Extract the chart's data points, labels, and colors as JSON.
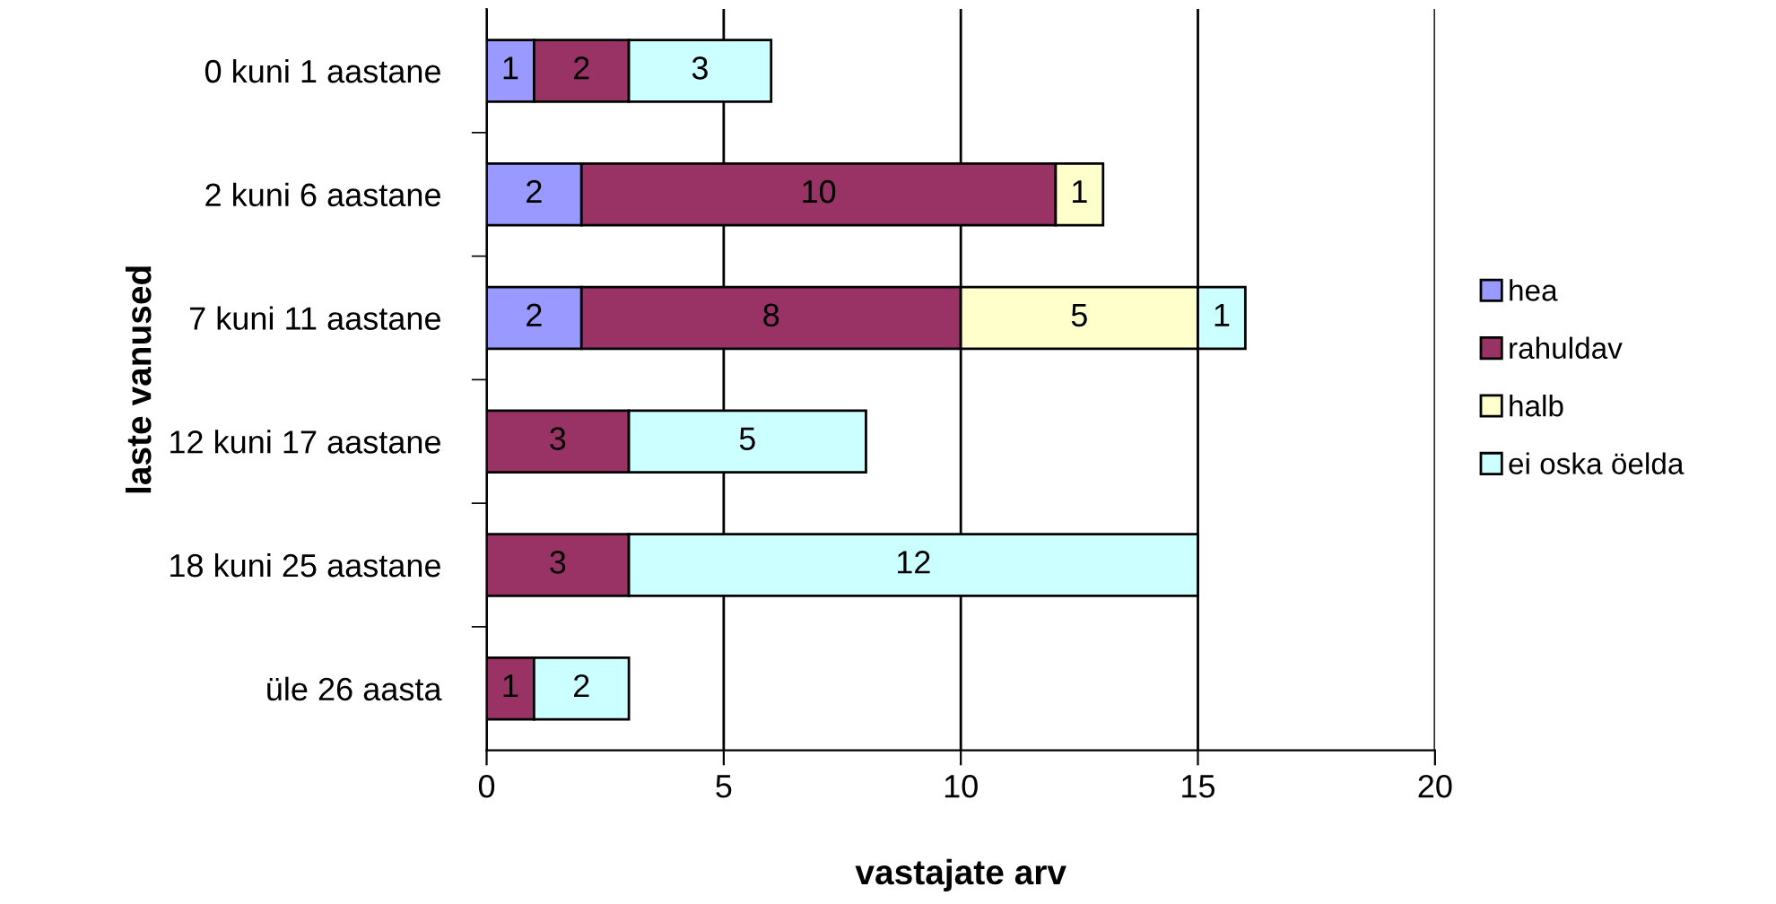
{
  "chart_data": {
    "type": "bar",
    "orientation": "horizontal",
    "stacked": true,
    "xlabel": "vastajate arv",
    "ylabel": "laste vanused",
    "categories": [
      "0 kuni 1 aastane",
      "2 kuni 6 aastane",
      "7 kuni 11 aastane",
      "12 kuni 17 aastane",
      "18 kuni 25 aastane",
      "üle 26 aasta"
    ],
    "series": [
      {
        "name": "hea",
        "color": "#9999ff",
        "values": [
          1,
          2,
          2,
          null,
          null,
          null
        ]
      },
      {
        "name": "rahuldav",
        "color": "#993366",
        "values": [
          2,
          10,
          8,
          3,
          3,
          1
        ]
      },
      {
        "name": "halb",
        "color": "#ffffcc",
        "values": [
          null,
          1,
          5,
          null,
          null,
          null
        ]
      },
      {
        "name": "ei oska öelda",
        "color": "#ccffff",
        "values": [
          3,
          null,
          1,
          5,
          12,
          2
        ]
      }
    ],
    "xlim": [
      0,
      20
    ],
    "xticks": [
      0,
      5,
      10,
      15,
      20
    ],
    "grid": "x",
    "legend": "right",
    "data_labels": true
  }
}
